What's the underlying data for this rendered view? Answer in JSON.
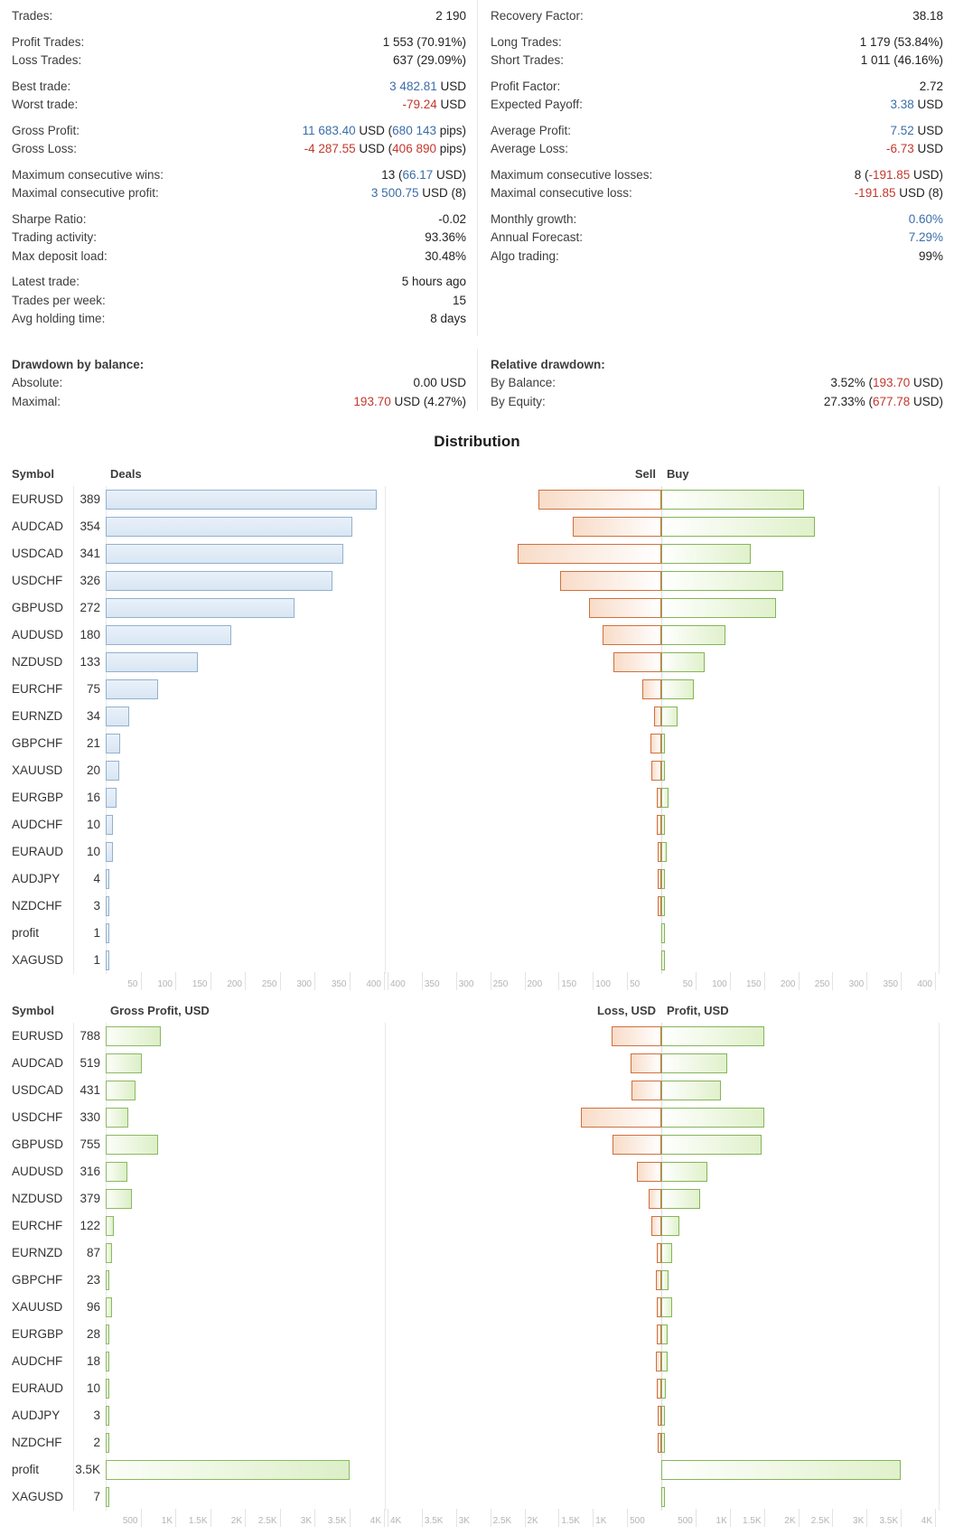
{
  "stats": {
    "left_groups": [
      [
        {
          "label": "Trades:",
          "parts": [
            {
              "t": "2 190",
              "c": "k"
            }
          ]
        }
      ],
      [
        {
          "label": "Profit Trades:",
          "parts": [
            {
              "t": "1 553 (70.91%)",
              "c": "k"
            }
          ]
        },
        {
          "label": "Loss Trades:",
          "parts": [
            {
              "t": "637 (29.09%)",
              "c": "k"
            }
          ]
        }
      ],
      [
        {
          "label": "Best trade:",
          "parts": [
            {
              "t": "3 482.81",
              "c": "b"
            },
            {
              "t": " USD",
              "c": "k"
            }
          ]
        },
        {
          "label": "Worst trade:",
          "parts": [
            {
              "t": "-79.24",
              "c": "r"
            },
            {
              "t": " USD",
              "c": "k"
            }
          ]
        }
      ],
      [
        {
          "label": "Gross Profit:",
          "parts": [
            {
              "t": "11 683.40",
              "c": "b"
            },
            {
              "t": " USD (",
              "c": "k"
            },
            {
              "t": "680 143",
              "c": "b"
            },
            {
              "t": " pips)",
              "c": "k"
            }
          ]
        },
        {
          "label": "Gross Loss:",
          "parts": [
            {
              "t": "-4 287.55",
              "c": "r"
            },
            {
              "t": " USD (",
              "c": "k"
            },
            {
              "t": "406 890",
              "c": "r"
            },
            {
              "t": " pips)",
              "c": "k"
            }
          ]
        }
      ],
      [
        {
          "label": "Maximum consecutive wins:",
          "parts": [
            {
              "t": "13 (",
              "c": "k"
            },
            {
              "t": "66.17",
              "c": "b"
            },
            {
              "t": " USD)",
              "c": "k"
            }
          ]
        },
        {
          "label": "Maximal consecutive profit:",
          "parts": [
            {
              "t": "3 500.75",
              "c": "b"
            },
            {
              "t": " USD (8)",
              "c": "k"
            }
          ]
        }
      ],
      [
        {
          "label": "Sharpe Ratio:",
          "parts": [
            {
              "t": "-0.02",
              "c": "k"
            }
          ]
        },
        {
          "label": "Trading activity:",
          "parts": [
            {
              "t": "93.36%",
              "c": "k"
            }
          ]
        },
        {
          "label": "Max deposit load:",
          "parts": [
            {
              "t": "30.48%",
              "c": "k"
            }
          ]
        }
      ],
      [
        {
          "label": "Latest trade:",
          "parts": [
            {
              "t": "5 hours ago",
              "c": "k"
            }
          ]
        },
        {
          "label": "Trades per week:",
          "parts": [
            {
              "t": "15",
              "c": "k"
            }
          ]
        },
        {
          "label": "Avg holding time:",
          "parts": [
            {
              "t": "8 days",
              "c": "k"
            }
          ]
        }
      ]
    ],
    "right_groups": [
      [
        {
          "label": "Recovery Factor:",
          "parts": [
            {
              "t": "38.18",
              "c": "k"
            }
          ]
        }
      ],
      [
        {
          "label": "Long Trades:",
          "parts": [
            {
              "t": "1 179 (53.84%)",
              "c": "k"
            }
          ]
        },
        {
          "label": "Short Trades:",
          "parts": [
            {
              "t": "1 011 (46.16%)",
              "c": "k"
            }
          ]
        }
      ],
      [
        {
          "label": "Profit Factor:",
          "parts": [
            {
              "t": "2.72",
              "c": "k"
            }
          ]
        },
        {
          "label": "Expected Payoff:",
          "parts": [
            {
              "t": "3.38",
              "c": "b"
            },
            {
              "t": " USD",
              "c": "k"
            }
          ]
        }
      ],
      [
        {
          "label": "Average Profit:",
          "parts": [
            {
              "t": "7.52",
              "c": "b"
            },
            {
              "t": " USD",
              "c": "k"
            }
          ]
        },
        {
          "label": "Average Loss:",
          "parts": [
            {
              "t": "-6.73",
              "c": "r"
            },
            {
              "t": " USD",
              "c": "k"
            }
          ]
        }
      ],
      [
        {
          "label": "Maximum consecutive losses:",
          "parts": [
            {
              "t": "8 (",
              "c": "k"
            },
            {
              "t": "-191.85",
              "c": "r"
            },
            {
              "t": " USD)",
              "c": "k"
            }
          ]
        },
        {
          "label": "Maximal consecutive loss:",
          "parts": [
            {
              "t": "-191.85",
              "c": "r"
            },
            {
              "t": " USD (8)",
              "c": "k"
            }
          ]
        }
      ],
      [
        {
          "label": "Monthly growth:",
          "parts": [
            {
              "t": "0.60%",
              "c": "b"
            }
          ]
        },
        {
          "label": "Annual Forecast:",
          "parts": [
            {
              "t": "7.29%",
              "c": "b"
            }
          ]
        },
        {
          "label": "Algo trading:",
          "parts": [
            {
              "t": "99%",
              "c": "k"
            }
          ]
        }
      ]
    ],
    "drawdown_left": {
      "header": "Drawdown by balance:",
      "rows": [
        {
          "label": "Absolute:",
          "parts": [
            {
              "t": "0.00 USD",
              "c": "k"
            }
          ]
        },
        {
          "label": "Maximal:",
          "parts": [
            {
              "t": "193.70",
              "c": "r"
            },
            {
              "t": " USD (4.27%)",
              "c": "k"
            }
          ]
        }
      ]
    },
    "drawdown_right": {
      "header": "Relative drawdown:",
      "rows": [
        {
          "label": "By Balance:",
          "parts": [
            {
              "t": "3.52% (",
              "c": "k"
            },
            {
              "t": "193.70",
              "c": "r"
            },
            {
              "t": " USD)",
              "c": "k"
            }
          ]
        },
        {
          "label": "By Equity:",
          "parts": [
            {
              "t": "27.33% (",
              "c": "k"
            },
            {
              "t": "677.78",
              "c": "r"
            },
            {
              "t": " USD)",
              "c": "k"
            }
          ]
        }
      ]
    }
  },
  "distribution": {
    "title": "Distribution"
  },
  "chart_data": [
    {
      "type": "bar",
      "title": "Deals / Sell-Buy distribution by symbol",
      "columns": {
        "symbol": "Symbol",
        "left": "Deals",
        "neg": "Sell",
        "pos": "Buy"
      },
      "axis_max": 400,
      "x_ticks": [
        "50",
        "100",
        "150",
        "200",
        "250",
        "300",
        "350",
        "400"
      ],
      "x_ticks_sell": [
        "400",
        "350",
        "300",
        "250",
        "200",
        "150",
        "100",
        "50"
      ],
      "x_ticks_buy": [
        "50",
        "100",
        "150",
        "200",
        "250",
        "300",
        "350",
        "400"
      ],
      "left_key": "deals",
      "label_key": "count",
      "neg_key": "sell",
      "pos_key": "buy",
      "bar_names": {
        "left": "deals-bar",
        "neg": "sell-bar",
        "pos": "buy-bar"
      },
      "rows": [
        {
          "symbol": "EURUSD",
          "count": "389",
          "deals": 389,
          "sell": 180,
          "buy": 209
        },
        {
          "symbol": "AUDCAD",
          "count": "354",
          "deals": 354,
          "sell": 130,
          "buy": 224
        },
        {
          "symbol": "USDCAD",
          "count": "341",
          "deals": 341,
          "sell": 210,
          "buy": 131
        },
        {
          "symbol": "USDCHF",
          "count": "326",
          "deals": 326,
          "sell": 148,
          "buy": 178
        },
        {
          "symbol": "GBPUSD",
          "count": "272",
          "deals": 272,
          "sell": 105,
          "buy": 167
        },
        {
          "symbol": "AUDUSD",
          "count": "180",
          "deals": 180,
          "sell": 86,
          "buy": 94
        },
        {
          "symbol": "NZDUSD",
          "count": "133",
          "deals": 133,
          "sell": 70,
          "buy": 63
        },
        {
          "symbol": "EURCHF",
          "count": "75",
          "deals": 75,
          "sell": 28,
          "buy": 47
        },
        {
          "symbol": "EURNZD",
          "count": "34",
          "deals": 34,
          "sell": 10,
          "buy": 24
        },
        {
          "symbol": "GBPCHF",
          "count": "21",
          "deals": 21,
          "sell": 16,
          "buy": 5
        },
        {
          "symbol": "XAUUSD",
          "count": "20",
          "deals": 20,
          "sell": 15,
          "buy": 5
        },
        {
          "symbol": "EURGBP",
          "count": "16",
          "deals": 16,
          "sell": 6,
          "buy": 10
        },
        {
          "symbol": "AUDCHF",
          "count": "10",
          "deals": 10,
          "sell": 7,
          "buy": 3
        },
        {
          "symbol": "EURAUD",
          "count": "10",
          "deals": 10,
          "sell": 2,
          "buy": 8
        },
        {
          "symbol": "AUDJPY",
          "count": "4",
          "deals": 4,
          "sell": 1,
          "buy": 3
        },
        {
          "symbol": "NZDCHF",
          "count": "3",
          "deals": 3,
          "sell": 2,
          "buy": 1
        },
        {
          "symbol": "profit",
          "count": "1",
          "deals": 1,
          "sell": 0,
          "buy": 1
        },
        {
          "symbol": "XAGUSD",
          "count": "1",
          "deals": 1,
          "sell": 0,
          "buy": 1
        }
      ]
    },
    {
      "type": "bar",
      "title": "Gross Profit / Loss-Profit distribution by symbol (USD)",
      "columns": {
        "symbol": "Symbol",
        "left": "Gross Profit, USD",
        "neg": "Loss, USD",
        "pos": "Profit, USD"
      },
      "axis_max": 4000,
      "x_ticks": [
        "500",
        "1K",
        "1.5K",
        "2K",
        "2.5K",
        "3K",
        "3.5K",
        "4K"
      ],
      "x_ticks_sell": [
        "4K",
        "3.5K",
        "3K",
        "2.5K",
        "2K",
        "1.5K",
        "1K",
        "500"
      ],
      "x_ticks_buy": [
        "500",
        "1K",
        "1.5K",
        "2K",
        "2.5K",
        "3K",
        "3.5K",
        "4K"
      ],
      "left_key": "gross_profit",
      "label_key": "label",
      "neg_key": "loss",
      "pos_key": "profit",
      "bar_names": {
        "left": "gross-profit-bar",
        "neg": "loss-bar",
        "pos": "profit-bar"
      },
      "rows": [
        {
          "symbol": "EURUSD",
          "label": "788",
          "gross_profit": 788,
          "loss": 720,
          "profit": 1508
        },
        {
          "symbol": "AUDCAD",
          "label": "519",
          "gross_profit": 519,
          "loss": 451,
          "profit": 970
        },
        {
          "symbol": "USDCAD",
          "label": "431",
          "gross_profit": 431,
          "loss": 440,
          "profit": 871
        },
        {
          "symbol": "USDCHF",
          "label": "330",
          "gross_profit": 330,
          "loss": 1170,
          "profit": 1500
        },
        {
          "symbol": "GBPUSD",
          "label": "755",
          "gross_profit": 755,
          "loss": 715,
          "profit": 1470
        },
        {
          "symbol": "AUDUSD",
          "label": "316",
          "gross_profit": 316,
          "loss": 360,
          "profit": 676
        },
        {
          "symbol": "NZDUSD",
          "label": "379",
          "gross_profit": 379,
          "loss": 191,
          "profit": 570
        },
        {
          "symbol": "EURCHF",
          "label": "122",
          "gross_profit": 122,
          "loss": 145,
          "profit": 267
        },
        {
          "symbol": "EURNZD",
          "label": "87",
          "gross_profit": 87,
          "loss": 65,
          "profit": 152
        },
        {
          "symbol": "GBPCHF",
          "label": "23",
          "gross_profit": 23,
          "loss": 77,
          "profit": 100
        },
        {
          "symbol": "XAUUSD",
          "label": "96",
          "gross_profit": 96,
          "loss": 64,
          "profit": 160
        },
        {
          "symbol": "EURGBP",
          "label": "28",
          "gross_profit": 28,
          "loss": 70,
          "profit": 98
        },
        {
          "symbol": "AUDCHF",
          "label": "18",
          "gross_profit": 18,
          "loss": 75,
          "profit": 93
        },
        {
          "symbol": "EURAUD",
          "label": "10",
          "gross_profit": 10,
          "loss": 60,
          "profit": 70
        },
        {
          "symbol": "AUDJPY",
          "label": "3",
          "gross_profit": 3,
          "loss": 30,
          "profit": 33
        },
        {
          "symbol": "NZDCHF",
          "label": "2",
          "gross_profit": 2,
          "loss": 10,
          "profit": 12
        },
        {
          "symbol": "profit",
          "label": "3.5K",
          "gross_profit": 3500,
          "loss": 0,
          "profit": 3500
        },
        {
          "symbol": "XAGUSD",
          "label": "7",
          "gross_profit": 7,
          "loss": 0,
          "profit": 7
        }
      ]
    }
  ]
}
